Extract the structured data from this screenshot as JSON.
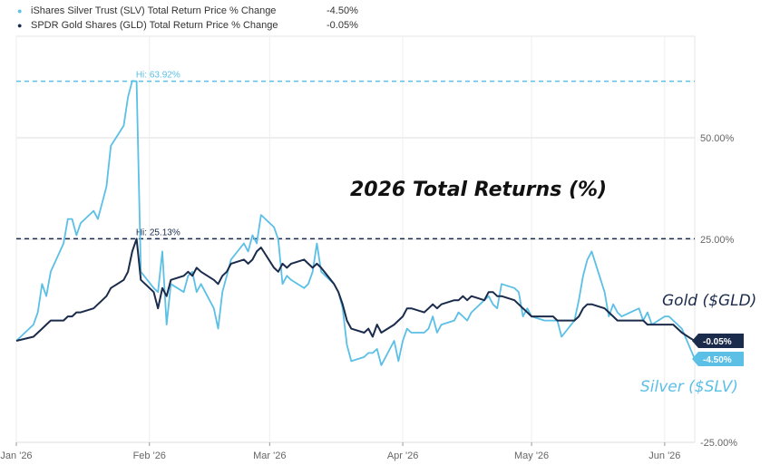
{
  "legend": [
    {
      "symbol": "●",
      "label": "iShares Silver Trust (SLV) Total Return Price % Change",
      "value": "-4.50%",
      "color": "#5bbfe6"
    },
    {
      "symbol": "●",
      "label": "SPDR Gold Shares (GLD) Total Return Price % Change",
      "value": "-0.05%",
      "color": "#1b2b4b"
    }
  ],
  "title": "2026 Total Returns (%)",
  "annotations": {
    "gold_label": "Gold ($GLD)",
    "silver_label": "Silver ($SLV)",
    "gold_end_badge": "-0.05%",
    "silver_end_badge": "-4.50%",
    "silver_hi": "Hi: 63.92%",
    "gold_hi": "Hi: 25.13%"
  },
  "colors": {
    "silver": "#5bbfe6",
    "gold": "#1b2b4b",
    "grid": "#dddddd"
  },
  "chart_data": {
    "type": "line",
    "x_labels": [
      "Jan '26",
      "Feb '26",
      "Mar '26",
      "Apr '26",
      "May '26",
      "Jun '26"
    ],
    "x_label_dates": [
      "2026-01-01",
      "2026-02-01",
      "2026-03-01",
      "2026-04-01",
      "2026-05-01",
      "2026-06-01"
    ],
    "x_range": [
      "2026-01-01",
      "2026-06-08"
    ],
    "ylim": [
      -25,
      75
    ],
    "y_ticks": [
      50,
      25,
      -25
    ],
    "y_tick_labels": [
      "50.00%",
      "25.00%",
      "-25.00%"
    ],
    "hi_lines": [
      {
        "series": "SLV",
        "value": 63.92,
        "label": "Hi: 63.92%",
        "date": "2026-01-28"
      },
      {
        "series": "GLD",
        "value": 25.13,
        "label": "Hi: 25.13%",
        "date": "2026-01-28"
      }
    ],
    "series": [
      {
        "name": "iShares Silver Trust (SLV) Total Return Price % Change",
        "x": [
          "2026-01-01",
          "2026-01-05",
          "2026-01-06",
          "2026-01-07",
          "2026-01-08",
          "2026-01-09",
          "2026-01-12",
          "2026-01-13",
          "2026-01-14",
          "2026-01-15",
          "2026-01-16",
          "2026-01-19",
          "2026-01-20",
          "2026-01-21",
          "2026-01-22",
          "2026-01-23",
          "2026-01-26",
          "2026-01-27",
          "2026-01-28",
          "2026-01-29",
          "2026-01-30",
          "2026-02-02",
          "2026-02-03",
          "2026-02-04",
          "2026-02-05",
          "2026-02-06",
          "2026-02-09",
          "2026-02-10",
          "2026-02-11",
          "2026-02-12",
          "2026-02-13",
          "2026-02-16",
          "2026-02-17",
          "2026-02-18",
          "2026-02-19",
          "2026-02-20",
          "2026-02-23",
          "2026-02-24",
          "2026-02-25",
          "2026-02-26",
          "2026-02-27",
          "2026-03-02",
          "2026-03-03",
          "2026-03-04",
          "2026-03-05",
          "2026-03-06",
          "2026-03-09",
          "2026-03-10",
          "2026-03-11",
          "2026-03-12",
          "2026-03-13",
          "2026-03-16",
          "2026-03-17",
          "2026-03-18",
          "2026-03-19",
          "2026-03-20",
          "2026-03-23",
          "2026-03-24",
          "2026-03-25",
          "2026-03-26",
          "2026-03-27",
          "2026-03-30",
          "2026-03-31",
          "2026-04-01",
          "2026-04-02",
          "2026-04-03",
          "2026-04-06",
          "2026-04-07",
          "2026-04-08",
          "2026-04-09",
          "2026-04-10",
          "2026-04-13",
          "2026-04-14",
          "2026-04-15",
          "2026-04-16",
          "2026-04-17",
          "2026-04-20",
          "2026-04-21",
          "2026-04-22",
          "2026-04-23",
          "2026-04-24",
          "2026-04-27",
          "2026-04-28",
          "2026-04-29",
          "2026-04-30",
          "2026-05-01",
          "2026-05-04",
          "2026-05-05",
          "2026-05-06",
          "2026-05-07",
          "2026-05-08",
          "2026-05-11",
          "2026-05-12",
          "2026-05-13",
          "2026-05-14",
          "2026-05-15",
          "2026-05-18",
          "2026-05-19",
          "2026-05-20",
          "2026-05-21",
          "2026-05-22",
          "2026-05-26",
          "2026-05-27",
          "2026-05-28",
          "2026-05-29",
          "2026-06-01",
          "2026-06-02",
          "2026-06-03",
          "2026-06-04",
          "2026-06-05",
          "2026-06-08"
        ],
        "y": [
          0,
          4,
          7,
          14,
          11,
          17,
          24,
          30,
          30,
          26,
          29,
          32,
          30,
          34,
          38,
          48,
          53,
          60,
          64,
          63.9,
          17,
          13,
          12,
          22,
          4,
          14,
          12,
          16,
          17,
          12,
          14,
          8,
          3,
          12,
          16,
          20,
          24,
          22,
          26,
          24,
          31,
          28,
          25,
          14,
          16,
          15,
          13,
          14,
          17,
          24,
          17,
          14,
          12,
          8,
          -1,
          -5,
          -4,
          -3,
          -3,
          -2,
          -6,
          0,
          -5,
          0,
          3,
          2,
          2,
          3,
          6,
          2,
          4,
          5,
          7,
          6,
          5,
          7,
          10,
          11,
          9,
          8,
          14,
          13,
          12,
          6,
          8,
          6,
          5,
          5,
          5,
          5,
          1,
          5,
          10,
          16,
          20,
          22,
          12,
          6,
          9,
          7,
          6,
          8,
          5,
          7,
          4,
          6,
          6,
          5,
          4,
          3,
          -4.5
        ],
        "color": "#5bbfe6"
      },
      {
        "name": "SPDR Gold Shares (GLD) Total Return Price % Change",
        "x": [
          "2026-01-01",
          "2026-01-05",
          "2026-01-06",
          "2026-01-07",
          "2026-01-08",
          "2026-01-09",
          "2026-01-12",
          "2026-01-13",
          "2026-01-14",
          "2026-01-15",
          "2026-01-16",
          "2026-01-19",
          "2026-01-20",
          "2026-01-21",
          "2026-01-22",
          "2026-01-23",
          "2026-01-26",
          "2026-01-27",
          "2026-01-28",
          "2026-01-29",
          "2026-01-30",
          "2026-02-02",
          "2026-02-03",
          "2026-02-04",
          "2026-02-05",
          "2026-02-06",
          "2026-02-09",
          "2026-02-10",
          "2026-02-11",
          "2026-02-12",
          "2026-02-13",
          "2026-02-16",
          "2026-02-17",
          "2026-02-18",
          "2026-02-19",
          "2026-02-20",
          "2026-02-23",
          "2026-02-24",
          "2026-02-25",
          "2026-02-26",
          "2026-02-27",
          "2026-03-02",
          "2026-03-03",
          "2026-03-04",
          "2026-03-05",
          "2026-03-06",
          "2026-03-09",
          "2026-03-10",
          "2026-03-11",
          "2026-03-12",
          "2026-03-13",
          "2026-03-16",
          "2026-03-17",
          "2026-03-18",
          "2026-03-19",
          "2026-03-20",
          "2026-03-23",
          "2026-03-24",
          "2026-03-25",
          "2026-03-26",
          "2026-03-27",
          "2026-03-30",
          "2026-03-31",
          "2026-04-01",
          "2026-04-02",
          "2026-04-03",
          "2026-04-06",
          "2026-04-07",
          "2026-04-08",
          "2026-04-09",
          "2026-04-10",
          "2026-04-13",
          "2026-04-14",
          "2026-04-15",
          "2026-04-16",
          "2026-04-17",
          "2026-04-20",
          "2026-04-21",
          "2026-04-22",
          "2026-04-23",
          "2026-04-24",
          "2026-04-27",
          "2026-04-28",
          "2026-04-29",
          "2026-04-30",
          "2026-05-01",
          "2026-05-04",
          "2026-05-05",
          "2026-05-06",
          "2026-05-07",
          "2026-05-08",
          "2026-05-11",
          "2026-05-12",
          "2026-05-13",
          "2026-05-14",
          "2026-05-15",
          "2026-05-18",
          "2026-05-19",
          "2026-05-20",
          "2026-05-21",
          "2026-05-22",
          "2026-05-26",
          "2026-05-27",
          "2026-05-28",
          "2026-05-29",
          "2026-06-01",
          "2026-06-02",
          "2026-06-03",
          "2026-06-04",
          "2026-06-05",
          "2026-06-08"
        ],
        "y": [
          0,
          1,
          2,
          3,
          4,
          5,
          5,
          6,
          6,
          7,
          7,
          8,
          9,
          10,
          11,
          13,
          15,
          17,
          22,
          25.13,
          15,
          12,
          8,
          13,
          11,
          15,
          16,
          17,
          16,
          18,
          17,
          15,
          14,
          16,
          17,
          19,
          20,
          19,
          20,
          22,
          23,
          18,
          17,
          19,
          18,
          19,
          20,
          19,
          18,
          19,
          18,
          14,
          12,
          9,
          5,
          3,
          2,
          3,
          1,
          4,
          2,
          4,
          5,
          6,
          8,
          8,
          7,
          8,
          9,
          8,
          9,
          10,
          10,
          11,
          10,
          11,
          10,
          12,
          12,
          11,
          11,
          10,
          9,
          8,
          7,
          6,
          6,
          6,
          6,
          5,
          5,
          5,
          6,
          8,
          9,
          9,
          8,
          7,
          6,
          5,
          5,
          5,
          5,
          4,
          4,
          4,
          4,
          4,
          3,
          2,
          -0.05
        ],
        "color": "#1b2b4b"
      }
    ]
  }
}
